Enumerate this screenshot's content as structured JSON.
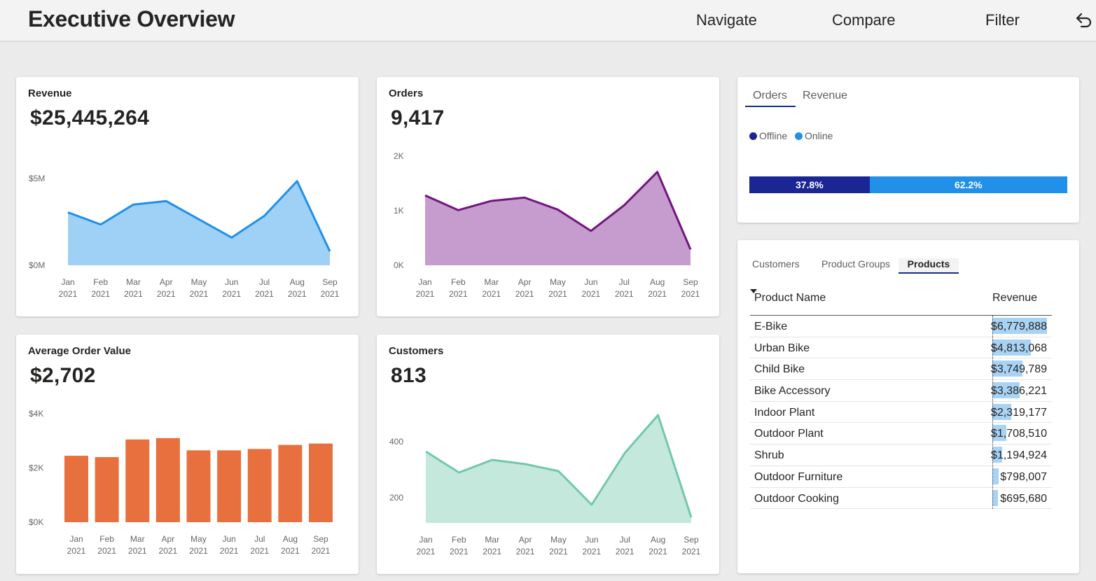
{
  "header": {
    "title": "Executive Overview",
    "nav": [
      "Navigate",
      "Compare",
      "Filter"
    ]
  },
  "kpis": {
    "revenue": {
      "title": "Revenue",
      "value": "$25,445,264"
    },
    "orders": {
      "title": "Orders",
      "value": "9,417"
    },
    "aov": {
      "title": "Average Order Value",
      "value": "$2,702"
    },
    "customers": {
      "title": "Customers",
      "value": "813"
    }
  },
  "split": {
    "tabs": [
      "Orders",
      "Revenue"
    ],
    "active_tab": "Orders",
    "legend": [
      {
        "name": "Offline",
        "color": "#1b2593"
      },
      {
        "name": "Online",
        "color": "#2090e8"
      }
    ],
    "segments": [
      {
        "label": "37.8%",
        "value": 37.8,
        "color": "#1b2593"
      },
      {
        "label": "62.2%",
        "value": 62.2,
        "color": "#2090e8"
      }
    ]
  },
  "products": {
    "tabs": [
      "Customers",
      "Product Groups",
      "Products"
    ],
    "active_tab": "Products",
    "headers": [
      "Product Name",
      "Revenue"
    ],
    "rows": [
      {
        "name": "E-Bike",
        "revenue": "$6,779,888",
        "value": 6779888
      },
      {
        "name": "Urban Bike",
        "revenue": "$4,813,068",
        "value": 4813068
      },
      {
        "name": "Child Bike",
        "revenue": "$3,749,789",
        "value": 3749789
      },
      {
        "name": "Bike Accessory",
        "revenue": "$3,386,221",
        "value": 3386221
      },
      {
        "name": "Indoor Plant",
        "revenue": "$2,319,177",
        "value": 2319177
      },
      {
        "name": "Outdoor Plant",
        "revenue": "$1,708,510",
        "value": 1708510
      },
      {
        "name": "Shrub",
        "revenue": "$1,194,924",
        "value": 1194924
      },
      {
        "name": "Outdoor Furniture",
        "revenue": "$798,007",
        "value": 798007
      },
      {
        "name": "Outdoor Cooking",
        "revenue": "$695,680",
        "value": 695680
      }
    ]
  },
  "chart_data": [
    {
      "id": "revenue",
      "type": "area",
      "categories": [
        "Jan 2021",
        "Feb 2021",
        "Mar 2021",
        "Apr 2021",
        "May 2021",
        "Jun 2021",
        "Jul 2021",
        "Aug 2021",
        "Sep 2021"
      ],
      "values": [
        3050000,
        2350000,
        3500000,
        3700000,
        2650000,
        1600000,
        2850000,
        4850000,
        800000
      ],
      "ylim": [
        0,
        5000000
      ],
      "yticks": [
        {
          "v": 0,
          "label": "$0M"
        },
        {
          "v": 5000000,
          "label": "$5M"
        }
      ],
      "line_color": "#2090e8",
      "fill_color": "#9fd1f7"
    },
    {
      "id": "orders",
      "type": "area",
      "categories": [
        "Jan 2021",
        "Feb 2021",
        "Mar 2021",
        "Apr 2021",
        "May 2021",
        "Jun 2021",
        "Jul 2021",
        "Aug 2021",
        "Sep 2021"
      ],
      "values": [
        1280,
        1010,
        1180,
        1240,
        1020,
        630,
        1100,
        1710,
        290
      ],
      "ylim": [
        0,
        2000
      ],
      "yticks": [
        {
          "v": 0,
          "label": "0K"
        },
        {
          "v": 1000,
          "label": "1K"
        },
        {
          "v": 2000,
          "label": "2K"
        }
      ],
      "line_color": "#73157f",
      "fill_color": "#c69ccf"
    },
    {
      "id": "aov",
      "type": "bar",
      "categories": [
        "Jan 2021",
        "Feb 2021",
        "Mar 2021",
        "Apr 2021",
        "May 2021",
        "Jun 2021",
        "Jul 2021",
        "Aug 2021",
        "Sep 2021"
      ],
      "values": [
        2450,
        2400,
        3050,
        3100,
        2650,
        2650,
        2700,
        2850,
        2900
      ],
      "ylim": [
        0,
        4000
      ],
      "yticks": [
        {
          "v": 0,
          "label": "$0K"
        },
        {
          "v": 2000,
          "label": "$2K"
        },
        {
          "v": 4000,
          "label": "$4K"
        }
      ],
      "bar_color": "#e8703e"
    },
    {
      "id": "customers",
      "type": "area",
      "categories": [
        "Jan 2021",
        "Feb 2021",
        "Mar 2021",
        "Apr 2021",
        "May 2021",
        "Jun 2021",
        "Jul 2021",
        "Aug 2021",
        "Sep 2021"
      ],
      "values": [
        365,
        290,
        335,
        320,
        295,
        175,
        360,
        495,
        130
      ],
      "ylim": [
        110,
        500
      ],
      "yticks": [
        {
          "v": 200,
          "label": "200"
        },
        {
          "v": 400,
          "label": "400"
        }
      ],
      "line_color": "#72c8a8",
      "fill_color": "#c4e9dc"
    }
  ]
}
